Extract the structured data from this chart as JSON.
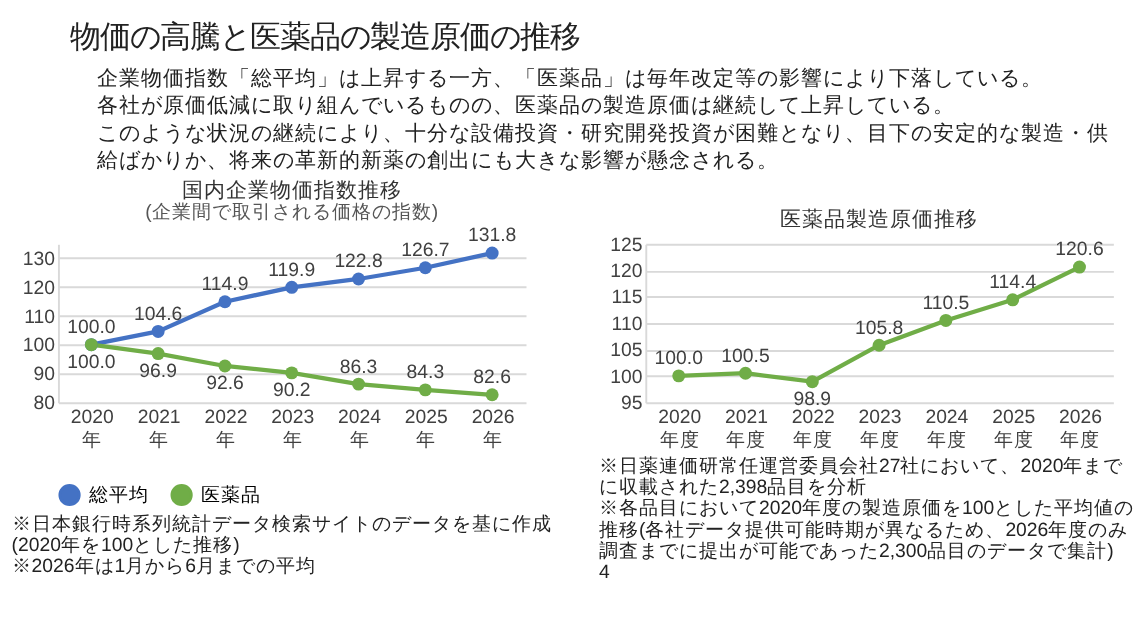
{
  "chart_data": [
    {
      "type": "other",
      "title": "物価の高騰と医薬品の製造原価の推移",
      "annotations": [
        "企業物価指数「総平均」は上昇する一方、「医薬品」は毎年改定等の影響により下落している。",
        "各社が原価低減に取り組んでいるものの、医薬品の製造原価は継続して上昇している。",
        "このような状況の継続により、十分な設備投資・研究開発投資が困難となり、目下の安定的な製造・供給ばかりか、将来の革新的新薬の創出にも大きな影響が懸念される。"
      ]
    },
    {
      "type": "line",
      "title": "国内企業物価指数推移",
      "subtitle": "(企業間で取引される価格の指数)",
      "categories": [
        "2020年",
        "2021年",
        "2022年",
        "2023年",
        "2024年",
        "2025年",
        "2026年"
      ],
      "series": [
        {
          "name": "総平均",
          "color": "#4472c4",
          "values": [
            100.0,
            104.6,
            114.9,
            119.9,
            122.8,
            126.7,
            131.8
          ],
          "value_labels": [
            "100.0",
            "104.6",
            "114.9",
            "119.9",
            "122.8",
            "126.7",
            "131.8"
          ]
        },
        {
          "name": "医薬品",
          "color": "#70ad47",
          "values": [
            100.0,
            96.9,
            92.6,
            90.2,
            86.3,
            84.3,
            82.6
          ],
          "value_labels": [
            "100.0",
            "96.9",
            "92.6",
            "90.2",
            "86.3",
            "84.3",
            "82.6"
          ]
        }
      ],
      "ylim": [
        80,
        135
      ],
      "yticks": [
        80,
        90,
        100,
        110,
        120,
        130
      ],
      "grid": "y",
      "legend": "bottom",
      "marker": "circle",
      "line_style": "solid",
      "data_labels": true,
      "annotations": [
        "※日本銀行時系列統計データ検索サイトのデータを基に作成(2020年を100とした推移)",
        "※2026年は1月から6月までの平均"
      ]
    },
    {
      "type": "line",
      "title": "医薬品製造原価推移",
      "categories": [
        "2020年度",
        "2021年度",
        "2022年度",
        "2023年度",
        "2024年度",
        "2025年度",
        "2026年度"
      ],
      "series": [
        {
          "color": "#70ad47",
          "values": [
            100.0,
            100.5,
            98.9,
            105.8,
            110.5,
            114.4,
            120.6
          ],
          "value_labels": [
            "100.0",
            "100.5",
            "98.9",
            "105.8",
            "110.5",
            "114.4",
            "120.6"
          ]
        }
      ],
      "ylim": [
        95,
        125
      ],
      "yticks": [
        95,
        100,
        105,
        110,
        115,
        120,
        125
      ],
      "grid": "y",
      "marker": "circle",
      "line_style": "solid",
      "data_labels": true,
      "annotations": [
        "※日薬連価研常任運営委員会社27社において、2020年までに収載された2,398品目を分析",
        "※各品目において2020年度の製造原価を100とした平均値の推移(各社データ提供可能時期が異なるため、2026年度のみ調査までに提出が可能であった2,300品目のデータで集計)",
        "4"
      ]
    }
  ]
}
